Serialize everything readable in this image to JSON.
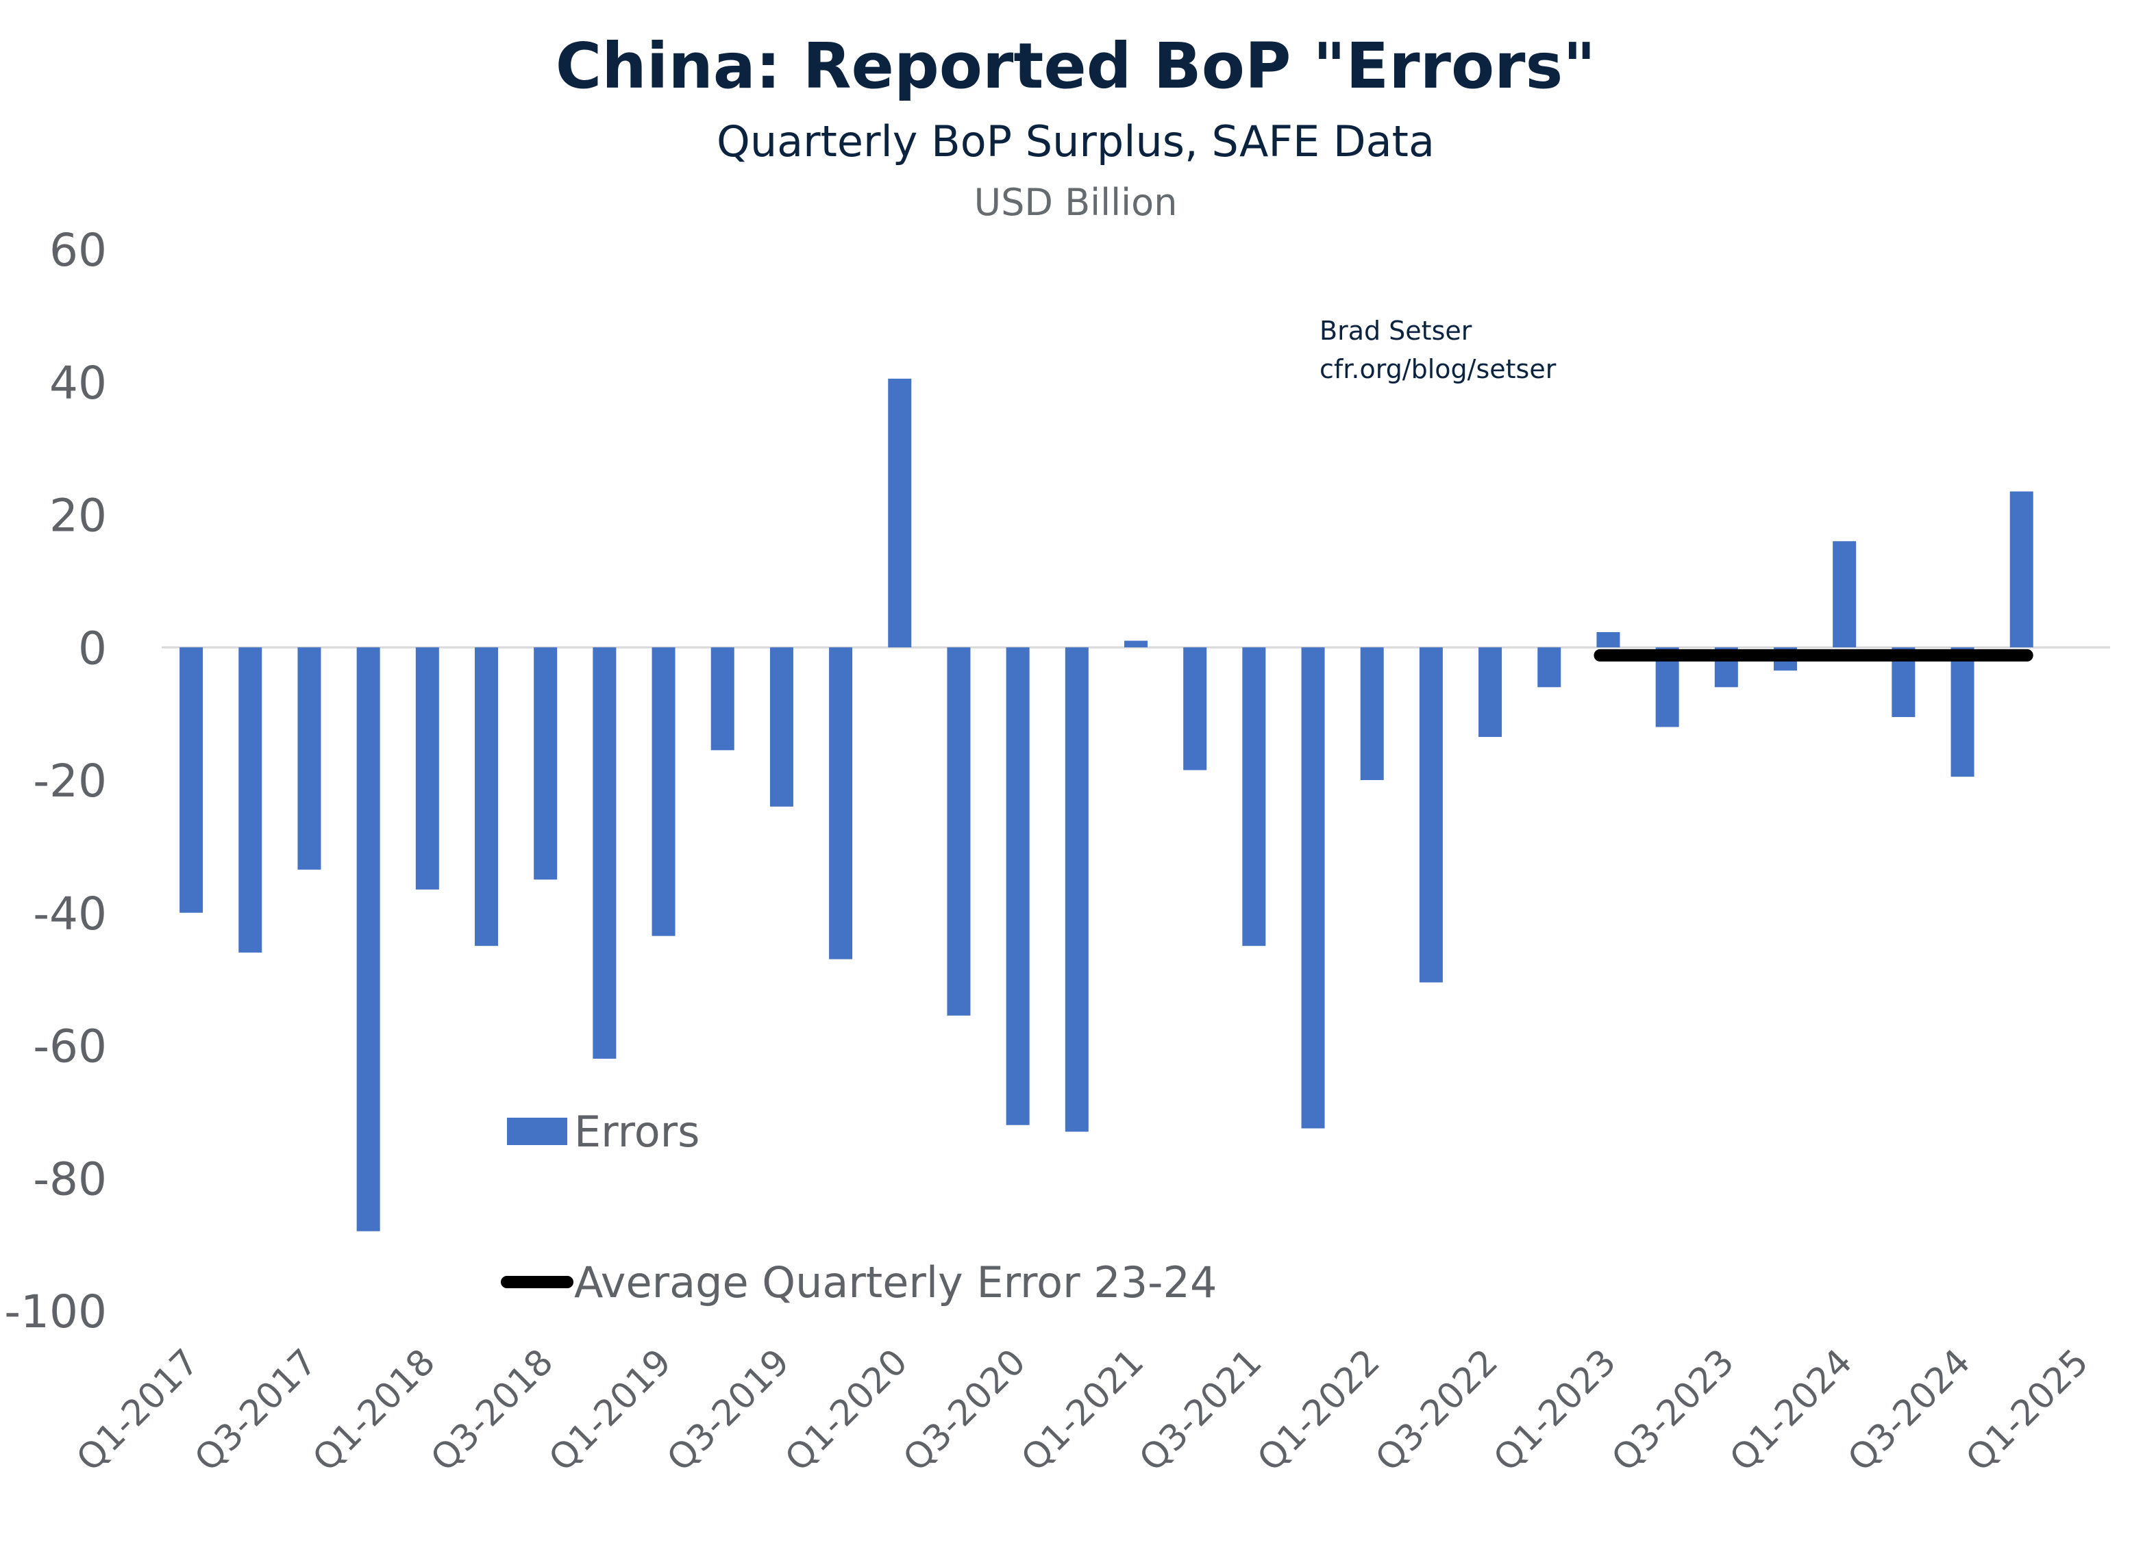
{
  "chart_data": {
    "type": "bar",
    "title": "China: Reported BoP \"Errors\"",
    "subtitle": "Quarterly BoP Surplus, SAFE Data",
    "units": "USD Billion",
    "credit": [
      "Brad Setser",
      "cfr.org/blog/setser"
    ],
    "categories": [
      "Q1-2017",
      "Q2-2017",
      "Q3-2017",
      "Q4-2017",
      "Q1-2018",
      "Q2-2018",
      "Q3-2018",
      "Q4-2018",
      "Q1-2019",
      "Q2-2019",
      "Q3-2019",
      "Q4-2019",
      "Q1-2020",
      "Q2-2020",
      "Q3-2020",
      "Q4-2020",
      "Q1-2021",
      "Q2-2021",
      "Q3-2021",
      "Q4-2021",
      "Q1-2022",
      "Q2-2022",
      "Q3-2022",
      "Q4-2022",
      "Q1-2023",
      "Q2-2023",
      "Q3-2023",
      "Q4-2023",
      "Q1-2024",
      "Q2-2024",
      "Q3-2024",
      "Q4-2024",
      "Q1-2025"
    ],
    "tick_labels": [
      "Q1-2017",
      "Q3-2017",
      "Q1-2018",
      "Q3-2018",
      "Q1-2019",
      "Q3-2019",
      "Q1-2020",
      "Q3-2020",
      "Q1-2021",
      "Q3-2021",
      "Q1-2022",
      "Q3-2022",
      "Q1-2023",
      "Q3-2023",
      "Q1-2024",
      "Q3-2024",
      "Q1-2025"
    ],
    "series": [
      {
        "name": "Errors",
        "type": "bar",
        "color": "#4472c4",
        "values": [
          -40,
          -46,
          -33.5,
          -88,
          -36.5,
          -45,
          -35,
          -62,
          -43.5,
          -15.5,
          -24,
          -47,
          40.5,
          -55.5,
          -72,
          -73,
          1,
          -18.5,
          -45,
          -72.5,
          -20,
          -50.5,
          -13.5,
          -6,
          2.3,
          -12,
          -6,
          -3.5,
          16,
          -10.5,
          -19.5,
          23.5,
          null
        ]
      },
      {
        "name": "Average Quarterly Error 23-24",
        "type": "line",
        "color": "#000000",
        "start": "Q1-2023",
        "end": "Q4-2024",
        "value": -1.2
      }
    ],
    "ylim": [
      -100,
      60
    ],
    "yticks": [
      60,
      40,
      20,
      0,
      -20,
      -40,
      -60,
      -80,
      -100
    ],
    "grid": false,
    "legend": "bottom-left inside"
  }
}
